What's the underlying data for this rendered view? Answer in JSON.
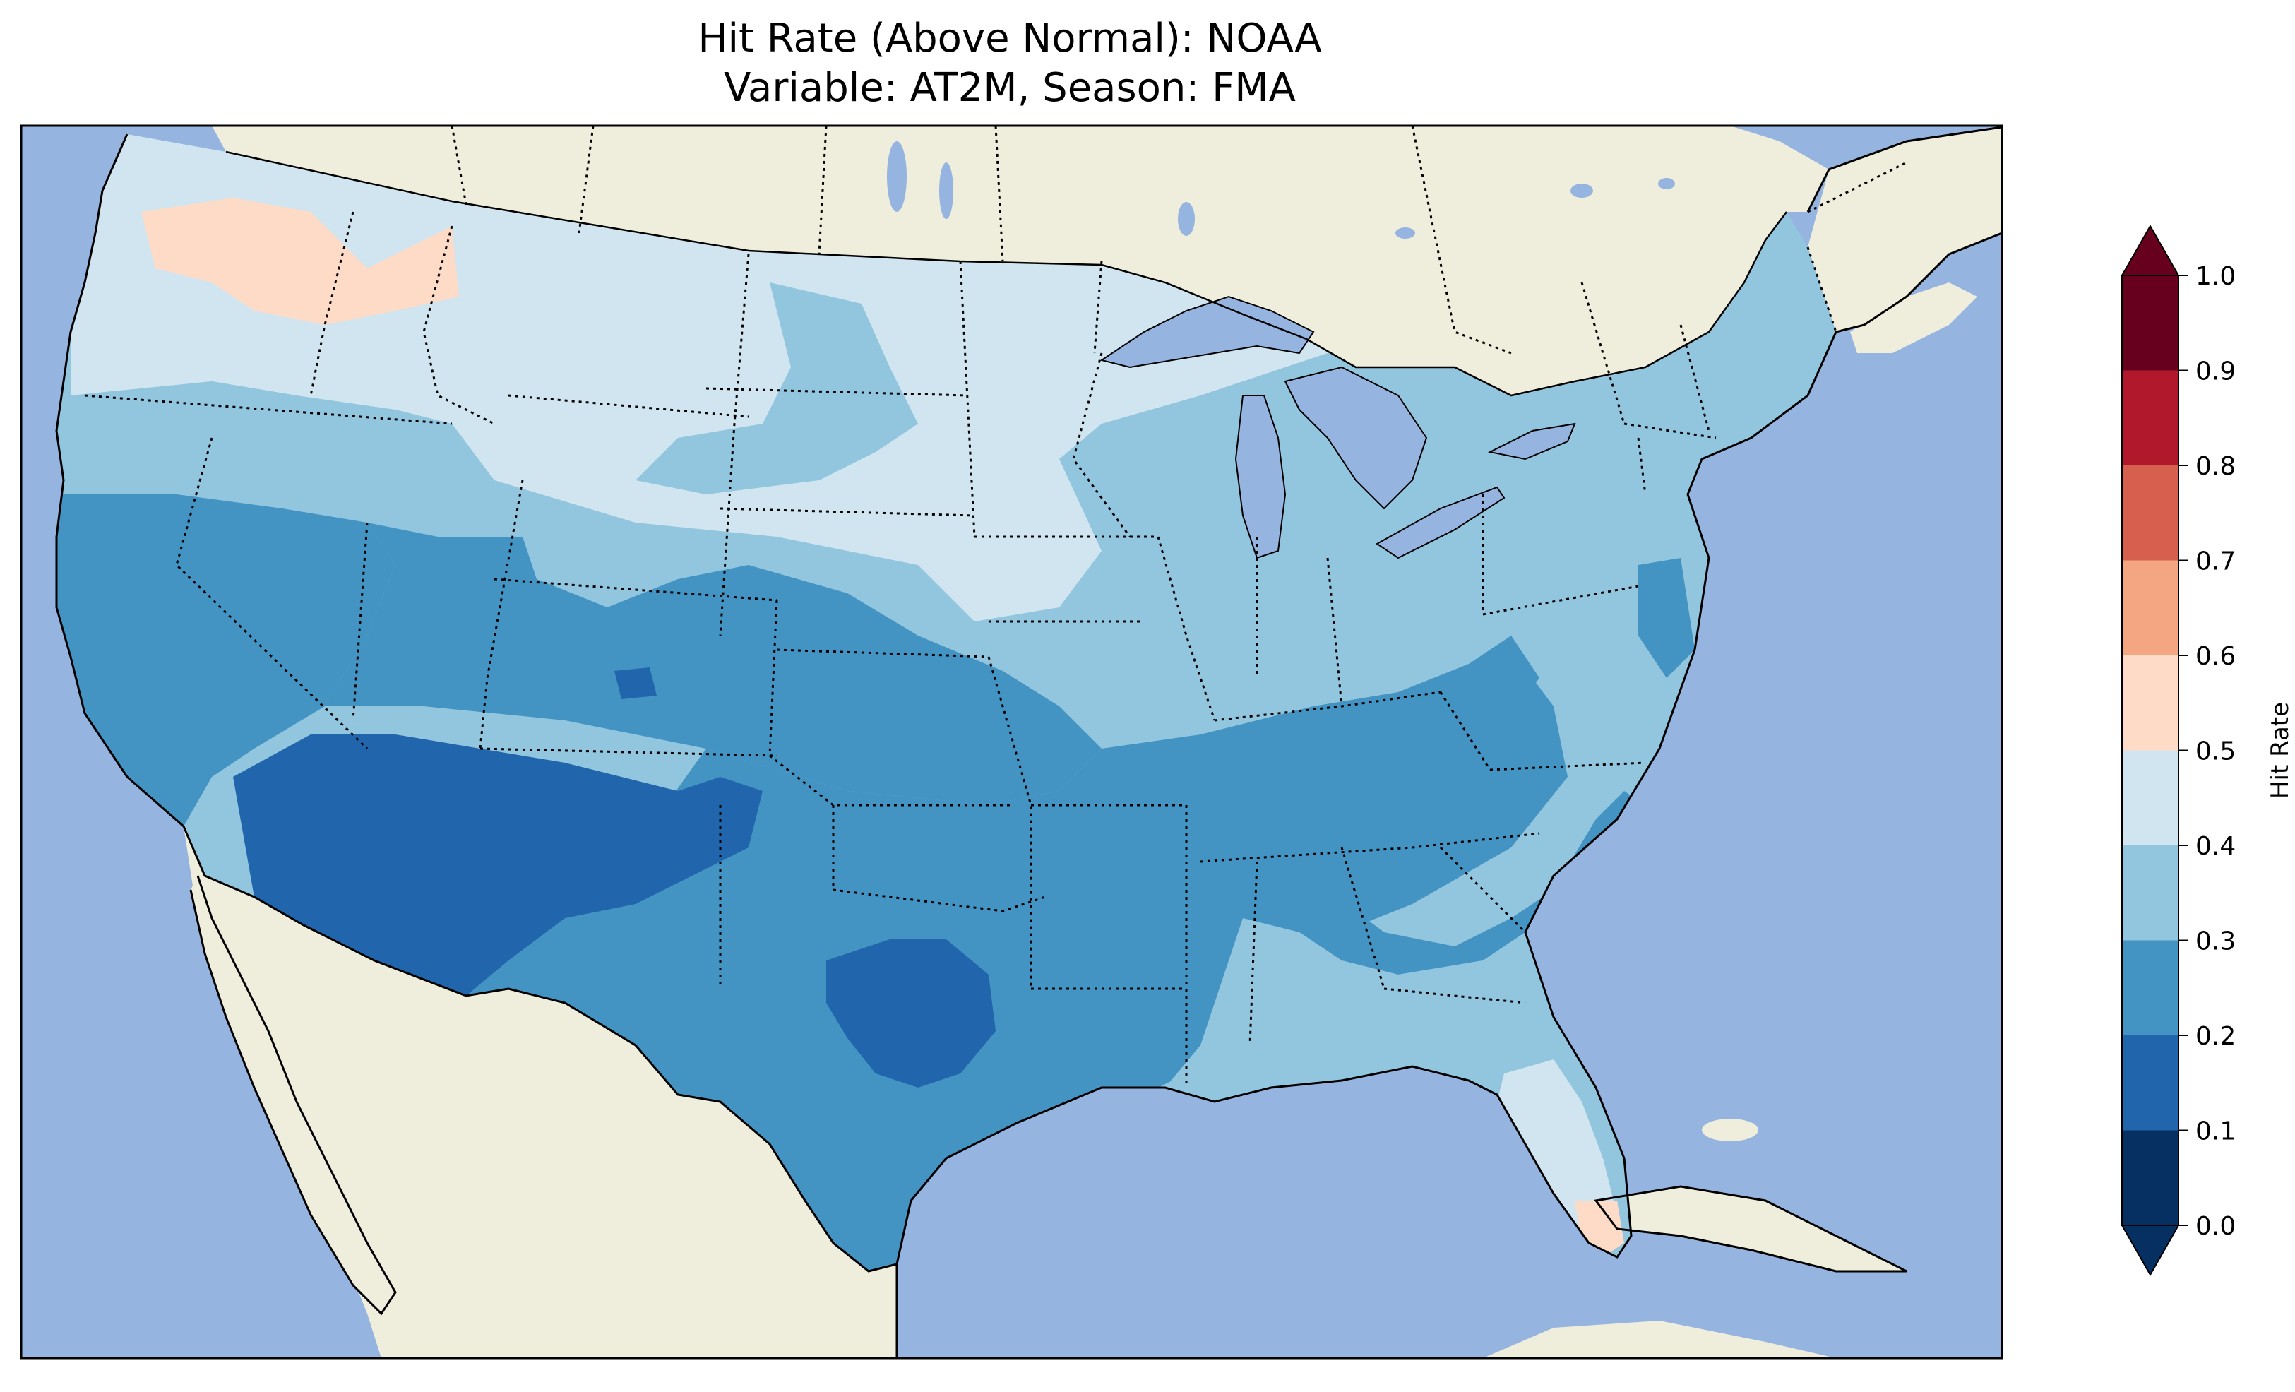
{
  "title": {
    "line1": "Hit Rate (Above Normal): NOAA",
    "line2": "Variable: AT2M, Season: FMA"
  },
  "colors": {
    "ocean": "#96b4e0",
    "land": "#efeddc",
    "frame": "#000000"
  },
  "colorbar": {
    "label": "Hit Rate",
    "under_color": "#053061",
    "over_color": "#67001f",
    "ticks": [
      "0.0",
      "0.1",
      "0.2",
      "0.3",
      "0.4",
      "0.5",
      "0.6",
      "0.7",
      "0.8",
      "0.9",
      "1.0"
    ],
    "bins": [
      {
        "from": 0.0,
        "to": 0.1,
        "color": "#053061"
      },
      {
        "from": 0.1,
        "to": 0.2,
        "color": "#2166ac"
      },
      {
        "from": 0.2,
        "to": 0.3,
        "color": "#4393c3"
      },
      {
        "from": 0.3,
        "to": 0.4,
        "color": "#92c5de"
      },
      {
        "from": 0.4,
        "to": 0.5,
        "color": "#d1e5f0"
      },
      {
        "from": 0.5,
        "to": 0.6,
        "color": "#fddbc7"
      },
      {
        "from": 0.6,
        "to": 0.7,
        "color": "#f4a582"
      },
      {
        "from": 0.7,
        "to": 0.8,
        "color": "#d6604d"
      },
      {
        "from": 0.8,
        "to": 0.9,
        "color": "#b2182b"
      },
      {
        "from": 0.9,
        "to": 1.0,
        "color": "#67001f"
      }
    ]
  },
  "regions": [
    {
      "name": "pacific-northwest",
      "value": 0.55
    },
    {
      "name": "northern-tier",
      "value": 0.45
    },
    {
      "name": "great-lakes",
      "value": 0.45
    },
    {
      "name": "northern-plains",
      "value": 0.35
    },
    {
      "name": "interior-northwest",
      "value": 0.35
    },
    {
      "name": "northeast",
      "value": 0.35
    },
    {
      "name": "midwest",
      "value": 0.35
    },
    {
      "name": "california",
      "value": 0.25
    },
    {
      "name": "great-basin",
      "value": 0.25
    },
    {
      "name": "central-rockies",
      "value": 0.25
    },
    {
      "name": "southern-plains",
      "value": 0.25
    },
    {
      "name": "tennessee-valley",
      "value": 0.25
    },
    {
      "name": "southwest",
      "value": 0.15
    },
    {
      "name": "central-texas",
      "value": 0.15
    },
    {
      "name": "southeast-coast",
      "value": 0.35
    },
    {
      "name": "florida",
      "value": 0.45
    },
    {
      "name": "south-florida",
      "value": 0.55
    }
  ]
}
